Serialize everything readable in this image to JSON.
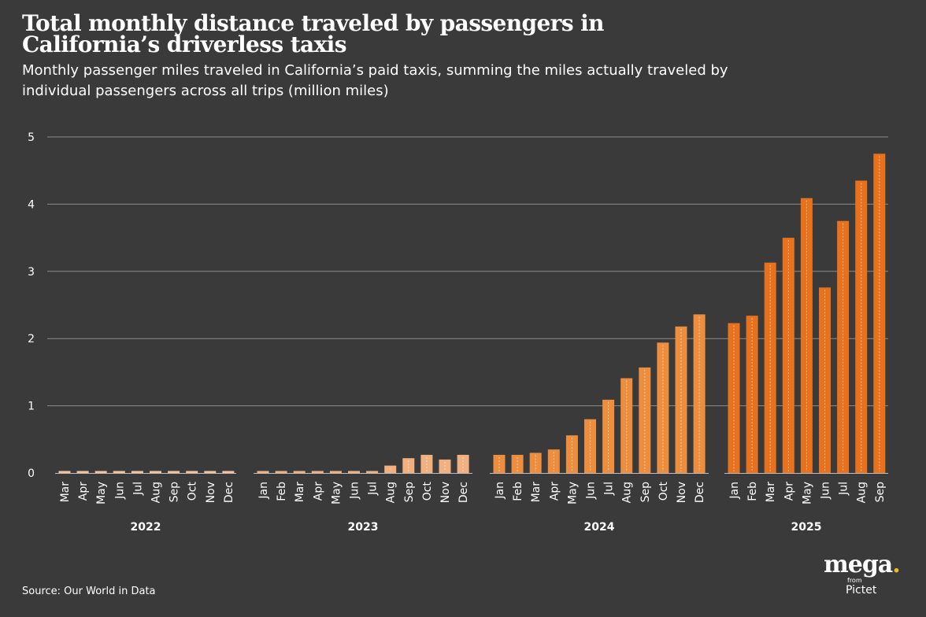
{
  "title": "Total monthly distance traveled by passengers in California’s driverless taxis",
  "subtitle": "Monthly passenger miles traveled in California’s paid taxis, summing the miles actually traveled by individual passengers across all trips (million miles)",
  "source": "Source: Our World in Data",
  "logo": {
    "main": "mega",
    "dot": ".",
    "from": "from",
    "sub": "Pictet"
  },
  "colors": {
    "background": "#3a3a3a",
    "grid": "#8c8c8c",
    "text": "#ffffff",
    "bar_2022": "#f3c29a",
    "bar_2023": "#f0b080",
    "bar_2024": "#ec8e3e",
    "bar_2025": "#e8711d",
    "logo_dot": "#f5b81c"
  },
  "chart_data": {
    "type": "bar",
    "title": "Total monthly distance traveled by passengers in California’s driverless taxis",
    "ylabel": "million miles",
    "ylim": [
      0,
      5
    ],
    "yticks": [
      0,
      1,
      2,
      3,
      4,
      5
    ],
    "grid": true,
    "groups": [
      {
        "year": "2022",
        "months": [
          "Mar",
          "Apr",
          "May",
          "Jun",
          "Jul",
          "Aug",
          "Sep",
          "Oct",
          "Nov",
          "Dec"
        ],
        "values": [
          0.03,
          0.03,
          0.03,
          0.03,
          0.03,
          0.03,
          0.03,
          0.03,
          0.03,
          0.03
        ]
      },
      {
        "year": "2023",
        "months": [
          "Jan",
          "Feb",
          "Mar",
          "Apr",
          "May",
          "Jun",
          "Jul",
          "Aug",
          "Sep",
          "Oct",
          "Nov",
          "Dec"
        ],
        "values": [
          0.03,
          0.03,
          0.03,
          0.03,
          0.03,
          0.03,
          0.03,
          0.11,
          0.22,
          0.27,
          0.2,
          0.27
        ]
      },
      {
        "year": "2024",
        "months": [
          "Jan",
          "Feb",
          "Mar",
          "Apr",
          "May",
          "Jun",
          "Jul",
          "Aug",
          "Sep",
          "Oct",
          "Nov",
          "Dec"
        ],
        "values": [
          0.27,
          0.27,
          0.3,
          0.35,
          0.56,
          0.8,
          1.09,
          1.41,
          1.57,
          1.94,
          2.18,
          2.36
        ]
      },
      {
        "year": "2025",
        "months": [
          "Jan",
          "Feb",
          "Mar",
          "Apr",
          "May",
          "Jun",
          "Jul",
          "Aug",
          "Sep"
        ],
        "values": [
          2.23,
          2.34,
          3.13,
          3.5,
          4.09,
          2.76,
          3.75,
          4.35,
          4.75
        ]
      }
    ]
  }
}
